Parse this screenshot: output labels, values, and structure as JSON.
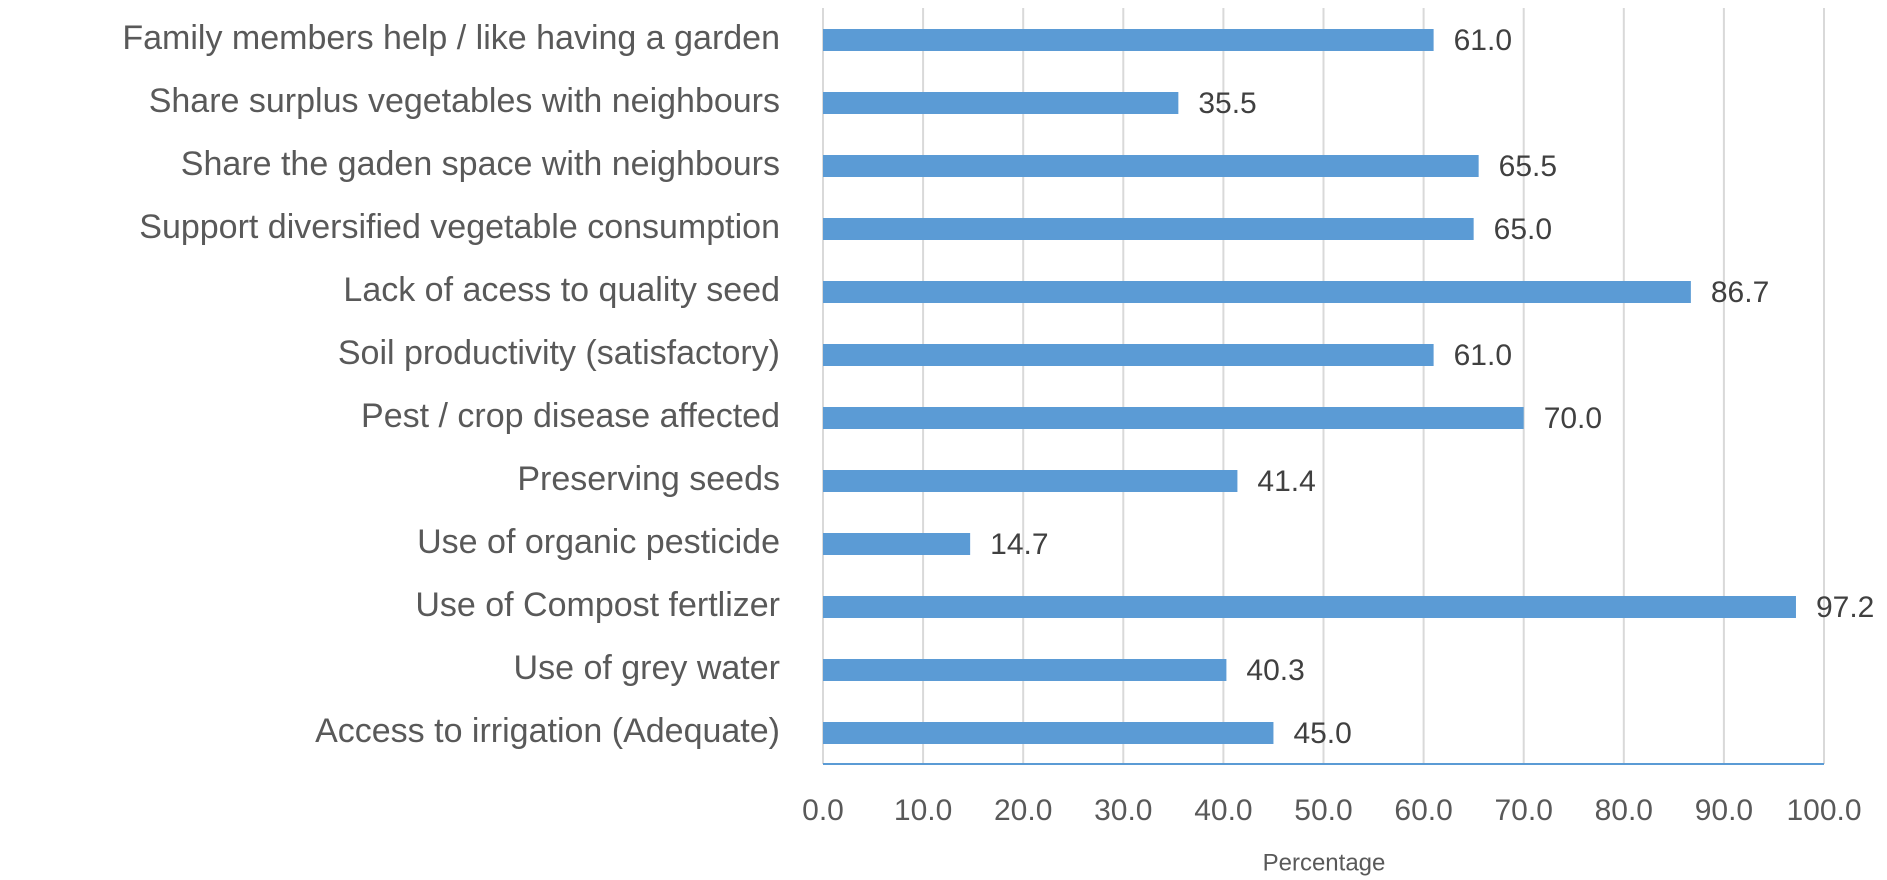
{
  "chart_data": {
    "type": "bar",
    "orientation": "horizontal",
    "x_label": "Percentage",
    "categories": [
      "Family members help / like having a garden",
      "Share surplus vegetables with neighbours",
      "Share the gaden space with neighbours",
      "Support diversified vegetable consumption",
      "Lack of acess to quality seed",
      "Soil productivity (satisfactory)",
      "Pest / crop disease affected",
      "Preserving seeds",
      "Use of organic pesticide",
      "Use of Compost fertlizer",
      "Use of grey water",
      "Access to irrigation (Adequate)"
    ],
    "values": [
      61.0,
      35.5,
      65.5,
      65.0,
      86.7,
      61.0,
      70.0,
      41.4,
      14.7,
      97.2,
      40.3,
      45.0
    ],
    "value_labels": [
      "61.0",
      "35.5",
      "65.5",
      "65.0",
      "86.7",
      "61.0",
      "70.0",
      "41.4",
      "14.7",
      "97.2",
      "40.3",
      "45.0"
    ],
    "color": "#5b9bd5",
    "xlim": [
      0,
      100
    ],
    "xticks": [
      {
        "value": 0,
        "label": "0.0"
      },
      {
        "value": 10,
        "label": "10.0"
      },
      {
        "value": 20,
        "label": "20.0"
      },
      {
        "value": 30,
        "label": "30.0"
      },
      {
        "value": 40,
        "label": "40.0"
      },
      {
        "value": 50,
        "label": "50.0"
      },
      {
        "value": 60,
        "label": "60.0"
      },
      {
        "value": 70,
        "label": "70.0"
      },
      {
        "value": 80,
        "label": "80.0"
      },
      {
        "value": 90,
        "label": "90.0"
      },
      {
        "value": 100,
        "label": "100.0"
      }
    ],
    "grid": true
  }
}
